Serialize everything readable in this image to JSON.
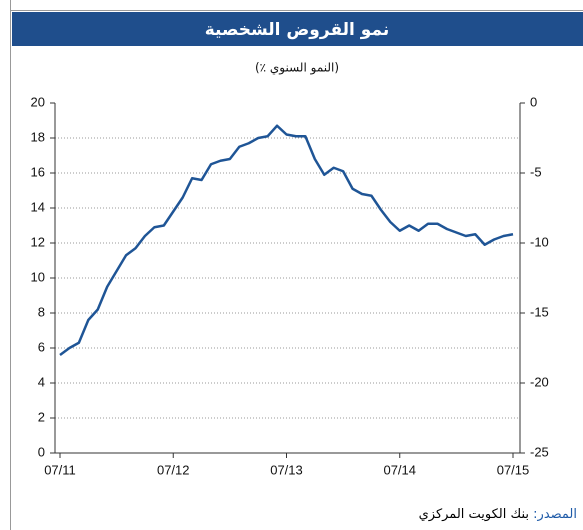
{
  "chart_data": {
    "type": "line",
    "title": "نمو القروض الشخصية",
    "subtitle": "(٪ النمو السنوي)",
    "categories": [
      "07/11",
      null,
      null,
      null,
      null,
      null,
      null,
      null,
      null,
      null,
      null,
      null,
      "07/12",
      null,
      null,
      null,
      null,
      null,
      null,
      null,
      null,
      null,
      null,
      null,
      "07/13",
      null,
      null,
      null,
      null,
      null,
      null,
      null,
      null,
      null,
      null,
      null,
      "07/14",
      null,
      null,
      null,
      null,
      null,
      null,
      null,
      null,
      null,
      null,
      null,
      "07/15"
    ],
    "series": [
      {
        "name": "نمو القروض الشخصية",
        "color": "#1f5596",
        "values": [
          5.6,
          6.0,
          6.3,
          7.6,
          8.2,
          9.5,
          10.4,
          11.3,
          11.7,
          12.4,
          12.9,
          13.0,
          13.8,
          14.6,
          15.7,
          15.6,
          16.5,
          16.7,
          16.8,
          17.5,
          17.7,
          18.0,
          18.1,
          18.7,
          18.2,
          18.1,
          18.1,
          16.8,
          15.9,
          16.3,
          16.1,
          15.1,
          14.8,
          14.7,
          13.9,
          13.2,
          12.7,
          13.0,
          12.7,
          13.1,
          13.1,
          12.8,
          12.6,
          12.4,
          12.5,
          11.9,
          12.2,
          12.4,
          12.5
        ]
      }
    ],
    "ylim": [
      0,
      20
    ],
    "yticks": [
      0,
      2,
      4,
      6,
      8,
      10,
      12,
      14,
      16,
      18,
      20
    ],
    "y2lim": [
      -25,
      0
    ],
    "y2ticks": [
      0,
      -5,
      -10,
      -15,
      -20,
      -25
    ],
    "grid": true,
    "source_label": "المصدر:",
    "source_text": "بنك الكويت المركزي"
  }
}
